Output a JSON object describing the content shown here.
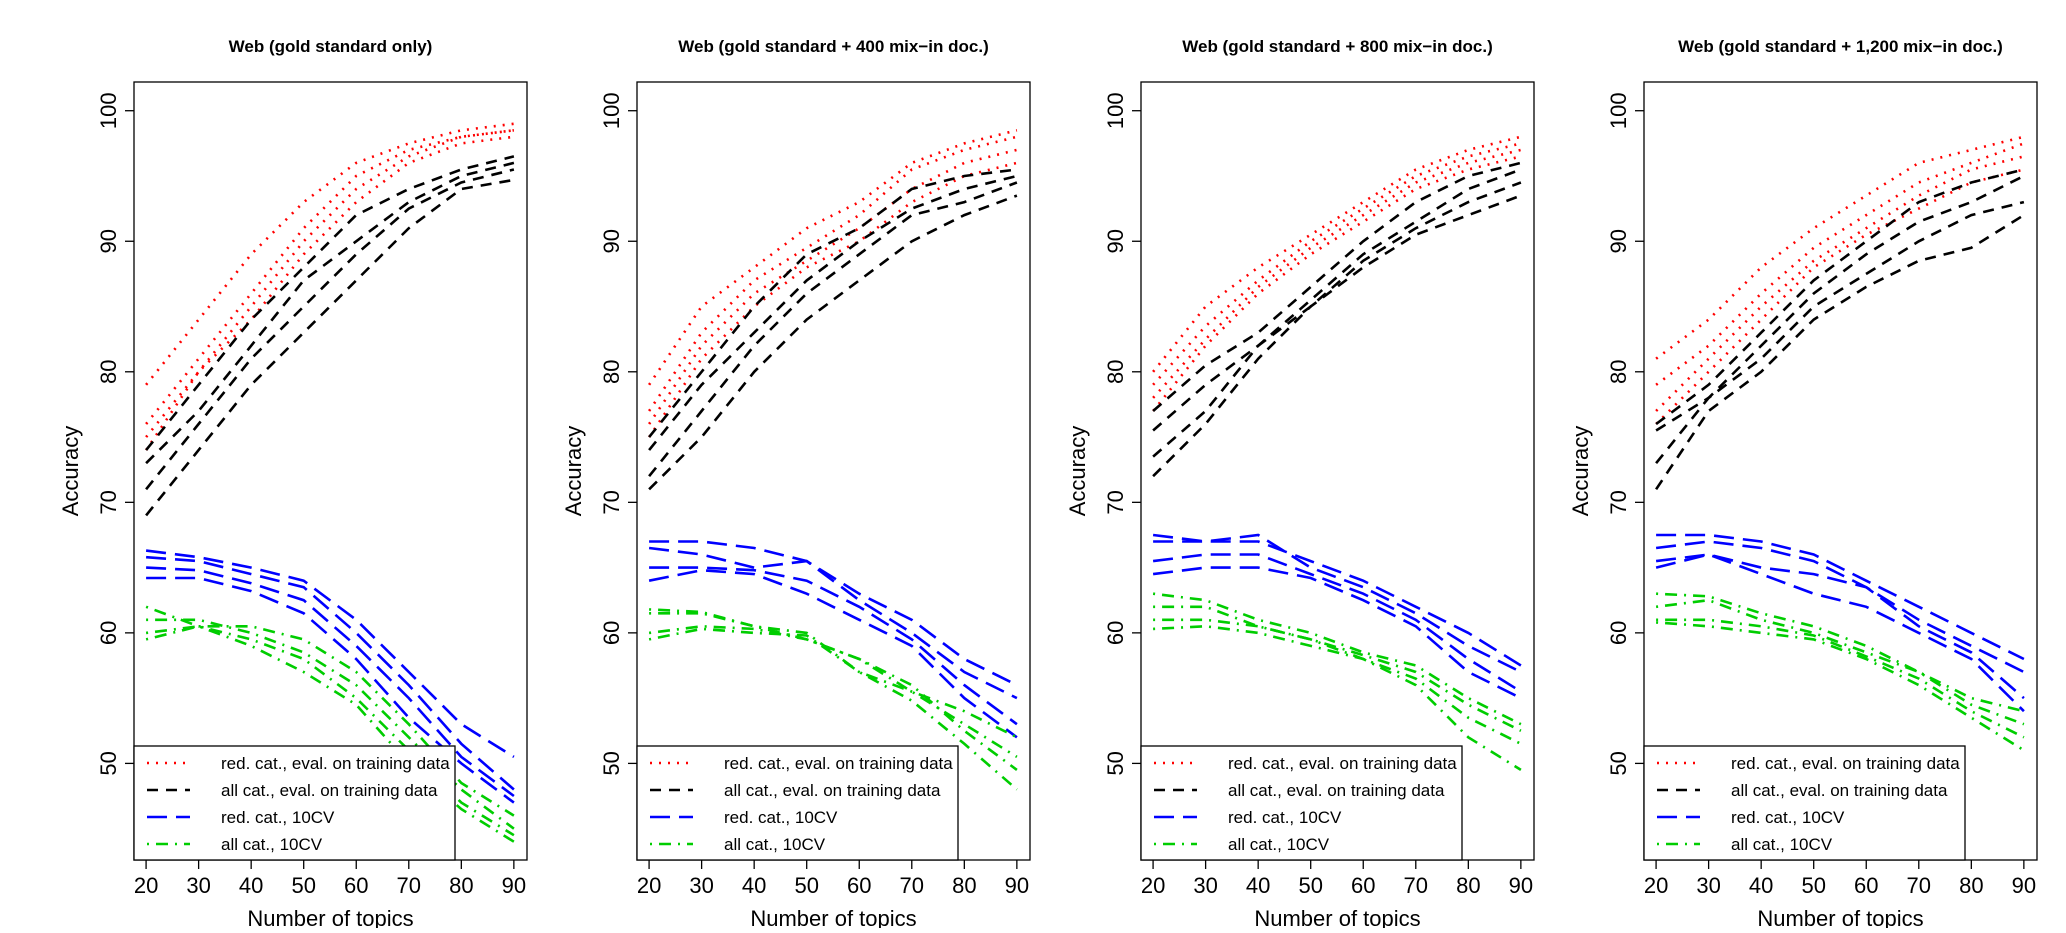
{
  "chart_data": [
    {
      "type": "line",
      "title": "Web (gold standard only)",
      "xlabel": "Number of topics",
      "ylabel": "Accuracy",
      "x": [
        20,
        30,
        40,
        50,
        60,
        70,
        80,
        90
      ],
      "xlim": [
        17.7,
        92.5
      ],
      "xticks": [
        20,
        30,
        40,
        50,
        60,
        70,
        80,
        90
      ],
      "ylim": [
        42.6,
        102.2
      ],
      "yticks": [
        50,
        60,
        70,
        80,
        90,
        100
      ],
      "legend": "bottomleft",
      "series": [
        {
          "name": "red. cat., eval. on training data",
          "color": "#ff0000",
          "style": "dotted",
          "values": [
            [
              79,
              84,
              89,
              93,
              96,
              97.5,
              98.5,
              99
            ],
            [
              76,
              81,
              86,
              91,
              95,
              97,
              98,
              98.5
            ],
            [
              75,
              80,
              85,
              90,
              94,
              96.5,
              98,
              98.5
            ],
            [
              74,
              80,
              84,
              89,
              93,
              96,
              97.5,
              98
            ]
          ]
        },
        {
          "name": "all cat., eval. on training data",
          "color": "#000000",
          "style": "dashed",
          "values": [
            [
              74,
              79,
              84,
              88,
              92,
              94,
              95.5,
              96.5
            ],
            [
              73,
              77,
              82,
              87,
              90,
              93,
              95,
              96
            ],
            [
              71,
              76,
              81,
              85,
              89,
              92.5,
              94.5,
              95.5
            ],
            [
              69,
              74,
              79,
              83,
              87,
              91,
              94,
              94.7
            ]
          ]
        },
        {
          "name": "red. cat., 10CV",
          "color": "#0000ff",
          "style": "longdash",
          "values": [
            [
              66.3,
              65.8,
              65,
              64,
              61,
              57,
              53,
              50.5
            ],
            [
              65.8,
              65.5,
              64.5,
              63.5,
              60,
              56,
              51.5,
              48
            ],
            [
              65,
              64.8,
              63.8,
              62.5,
              59,
              55,
              50.5,
              47.5
            ],
            [
              64.2,
              64.2,
              63.2,
              61.5,
              58,
              53.5,
              50,
              47
            ]
          ]
        },
        {
          "name": "all cat., 10CV",
          "color": "#00cd00",
          "style": "dotdash",
          "values": [
            [
              62,
              60.5,
              60.5,
              59.5,
              57,
              53,
              48.5,
              46
            ],
            [
              61,
              61,
              60,
              58.5,
              56,
              52,
              48,
              45
            ],
            [
              60,
              60.5,
              59.5,
              58,
              55,
              51,
              47,
              44.5
            ],
            [
              59.5,
              60.5,
              59,
              57,
              54.5,
              50,
              46.5,
              44
            ]
          ]
        }
      ]
    },
    {
      "type": "line",
      "title": "Web (gold standard + 400 mix−in doc.)",
      "xlabel": "Number of topics",
      "ylabel": "Accuracy",
      "x": [
        20,
        30,
        40,
        50,
        60,
        70,
        80,
        90
      ],
      "xlim": [
        17.7,
        92.5
      ],
      "xticks": [
        20,
        30,
        40,
        50,
        60,
        70,
        80,
        90
      ],
      "ylim": [
        42.6,
        102.2
      ],
      "yticks": [
        50,
        60,
        70,
        80,
        90,
        100
      ],
      "legend": "bottomleft",
      "series": [
        {
          "name": "red. cat., eval. on training data",
          "color": "#ff0000",
          "style": "dotted",
          "values": [
            [
              79,
              85,
              88,
              91,
              93,
              96,
              97.5,
              98.5
            ],
            [
              77,
              83,
              87,
              89.5,
              92,
              95.5,
              97,
              98
            ],
            [
              76,
              82,
              86,
              88.5,
              91,
              94,
              96,
              97
            ],
            [
              75,
              81,
              85,
              88,
              90,
              93,
              95,
              96
            ]
          ]
        },
        {
          "name": "all cat., eval. on training data",
          "color": "#000000",
          "style": "dashed",
          "values": [
            [
              75,
              80,
              85,
              89,
              91,
              94,
              95,
              95.5
            ],
            [
              74,
              79,
              83,
              87,
              90,
              92.5,
              94,
              95
            ],
            [
              72,
              77,
              82,
              86,
              89,
              92,
              93,
              94.5
            ],
            [
              71,
              75,
              80,
              84,
              87,
              90,
              92,
              93.5
            ]
          ]
        },
        {
          "name": "red. cat., 10CV",
          "color": "#0000ff",
          "style": "longdash",
          "values": [
            [
              67,
              67,
              66.5,
              65.5,
              63,
              61,
              58,
              56
            ],
            [
              66.5,
              66,
              65,
              65.5,
              62.5,
              60,
              57,
              55
            ],
            [
              65,
              65,
              64.8,
              64,
              62,
              59.5,
              56,
              53
            ],
            [
              64,
              64.8,
              64.5,
              63,
              61,
              59,
              55,
              52
            ]
          ]
        },
        {
          "name": "all cat., 10CV",
          "color": "#00cd00",
          "style": "dotdash",
          "values": [
            [
              61.8,
              61.6,
              60.5,
              60,
              57,
              55.5,
              54,
              52
            ],
            [
              61.5,
              61.5,
              60.5,
              59.5,
              58,
              55.5,
              53,
              50.5
            ],
            [
              60,
              60.5,
              60.3,
              59.5,
              58,
              56,
              52.5,
              49.5
            ],
            [
              59.5,
              60.3,
              60,
              59.8,
              57,
              54.8,
              51.5,
              48
            ]
          ]
        }
      ]
    },
    {
      "type": "line",
      "title": "Web (gold standard + 800 mix−in doc.)",
      "xlabel": "Number of topics",
      "ylabel": "Accuracy",
      "x": [
        20,
        30,
        40,
        50,
        60,
        70,
        80,
        90
      ],
      "xlim": [
        17.7,
        92.5
      ],
      "xticks": [
        20,
        30,
        40,
        50,
        60,
        70,
        80,
        90
      ],
      "ylim": [
        42.6,
        102.2
      ],
      "yticks": [
        50,
        60,
        70,
        80,
        90,
        100
      ],
      "legend": "bottomleft",
      "series": [
        {
          "name": "red. cat., eval. on training data",
          "color": "#ff0000",
          "style": "dotted",
          "values": [
            [
              80,
              85,
              88,
              90.5,
              93,
              95.5,
              97,
              98
            ],
            [
              79,
              83.5,
              87,
              90,
              92.5,
              95,
              96.5,
              97.5
            ],
            [
              78,
              82.5,
              86.5,
              89.5,
              92,
              94.5,
              96,
              97
            ],
            [
              77,
              82,
              86,
              89,
              91.5,
              94,
              95.5,
              96.5
            ]
          ]
        },
        {
          "name": "all cat., eval. on training data",
          "color": "#000000",
          "style": "dashed",
          "values": [
            [
              77,
              80.5,
              83,
              86.5,
              90,
              93,
              95,
              96
            ],
            [
              75.5,
              79,
              82,
              85.5,
              89,
              91.5,
              94,
              95.5
            ],
            [
              73.5,
              77,
              82,
              85,
              88.5,
              91,
              93,
              94.5
            ],
            [
              72,
              76,
              81,
              85,
              88,
              90.5,
              92,
              93.5
            ]
          ]
        },
        {
          "name": "red. cat., 10CV",
          "color": "#0000ff",
          "style": "longdash",
          "values": [
            [
              67.5,
              67,
              67,
              65.5,
              64,
              62,
              60,
              57.5
            ],
            [
              67,
              67,
              67.5,
              65,
              63.5,
              61.5,
              59,
              57
            ],
            [
              65.5,
              66,
              66,
              64.5,
              63,
              61,
              58,
              55.5
            ],
            [
              64.5,
              65,
              65,
              64.2,
              62.5,
              60.5,
              57,
              55
            ]
          ]
        },
        {
          "name": "all cat., 10CV",
          "color": "#00cd00",
          "style": "dotdash",
          "values": [
            [
              63,
              62.5,
              61,
              60,
              58.5,
              57.5,
              55,
              53
            ],
            [
              62,
              62,
              60.5,
              59.5,
              58.3,
              57,
              54.5,
              52.5
            ],
            [
              61,
              61,
              60.5,
              59.5,
              58,
              56.5,
              53.5,
              51.5
            ],
            [
              60.3,
              60.5,
              60,
              59,
              58,
              56,
              52,
              49.5
            ]
          ]
        }
      ]
    },
    {
      "type": "line",
      "title": "Web (gold standard + 1,200 mix−in doc.)",
      "xlabel": "Number of topics",
      "ylabel": "Accuracy",
      "x": [
        20,
        30,
        40,
        50,
        60,
        70,
        80,
        90
      ],
      "xlim": [
        17.7,
        92.5
      ],
      "xticks": [
        20,
        30,
        40,
        50,
        60,
        70,
        80,
        90
      ],
      "ylim": [
        42.6,
        102.2
      ],
      "yticks": [
        50,
        60,
        70,
        80,
        90,
        100
      ],
      "legend": "bottomleft",
      "series": [
        {
          "name": "red. cat., eval. on training data",
          "color": "#ff0000",
          "style": "dotted",
          "values": [
            [
              81,
              84,
              88,
              91,
              93.5,
              96,
              97,
              98
            ],
            [
              79,
              82,
              86,
              89.5,
              92,
              94.5,
              96,
              97.5
            ],
            [
              77,
              81,
              85,
              88.5,
              91,
              93.5,
              95.5,
              96.5
            ],
            [
              76,
              80,
              84,
              88,
              90.5,
              92.5,
              94.5,
              95.5
            ]
          ]
        },
        {
          "name": "all cat., eval. on training data",
          "color": "#000000",
          "style": "dashed",
          "values": [
            [
              76,
              79,
              83,
              87,
              90,
              93,
              94.5,
              95.5
            ],
            [
              75.5,
              78,
              82,
              86,
              89,
              91.5,
              93,
              95
            ],
            [
              73,
              78,
              81,
              85,
              87.5,
              90,
              92,
              93
            ],
            [
              71,
              77,
              80,
              84,
              86.5,
              88.5,
              89.5,
              92
            ]
          ]
        },
        {
          "name": "red. cat., 10CV",
          "color": "#0000ff",
          "style": "longdash",
          "values": [
            [
              67.5,
              67.5,
              67,
              66,
              64,
              62,
              60,
              58
            ],
            [
              66.5,
              67,
              66.5,
              65.5,
              63.5,
              61,
              59,
              57
            ],
            [
              65.5,
              66,
              65,
              64.5,
              63.5,
              60.5,
              58.5,
              55
            ],
            [
              65,
              66,
              64.5,
              63,
              62,
              60,
              58,
              54
            ]
          ]
        },
        {
          "name": "all cat., 10CV",
          "color": "#00cd00",
          "style": "dotdash",
          "values": [
            [
              63,
              62.8,
              61.5,
              60.5,
              59,
              57,
              55,
              54
            ],
            [
              62,
              62.5,
              61,
              60,
              58.5,
              57,
              54.5,
              53
            ],
            [
              61,
              61,
              60.5,
              59.8,
              58.2,
              56.5,
              54,
              52
            ],
            [
              60.8,
              60.5,
              60,
              59.5,
              58,
              56,
              53.5,
              51
            ]
          ]
        }
      ]
    }
  ]
}
